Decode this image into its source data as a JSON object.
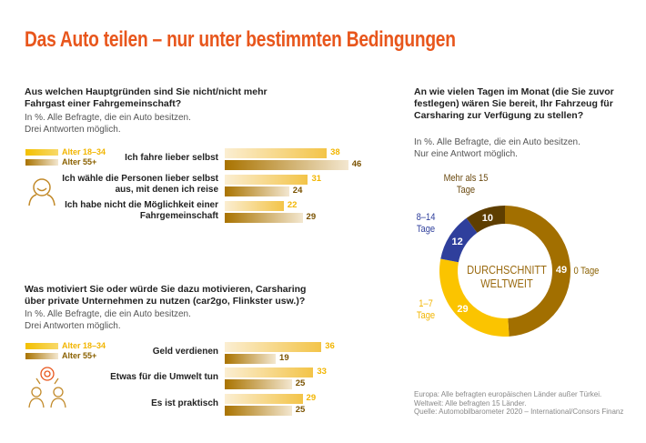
{
  "title": "Das Auto teilen – nur unter bestimmten Bedingungen",
  "colors": {
    "title": "#e8561c",
    "young": "#f3c448",
    "old": "#a97300",
    "donut_0": "#a26f00",
    "donut_1_7": "#fbc400",
    "donut_8_14": "#2f3f9c",
    "donut_15": "#5e3e00"
  },
  "chart_data": [
    {
      "type": "bar",
      "question": "Aus welchen Hauptgründen sind Sie nicht/nicht mehr Fahrgast einer Fahrgemeinschaft?",
      "note": [
        "In %. Alle Befragte, die ein Auto besitzen.",
        "Drei Antworten möglich."
      ],
      "icon": "person-icon",
      "categories": [
        "Ich fahre lieber selbst",
        "Ich wähle die Personen lieber selbst aus, mit denen ich reise",
        "Ich habe nicht die Möglichkeit einer Fahrgemeinschaft"
      ],
      "series": [
        {
          "name": "Alter 18–34",
          "values": [
            38,
            31,
            22
          ]
        },
        {
          "name": "Alter 55+",
          "values": [
            46,
            24,
            29
          ]
        }
      ]
    },
    {
      "type": "bar",
      "question": "Was motiviert Sie oder würde Sie dazu motivieren, Carsharing über private Unternehmen zu nutzen (car2go, Flinkster usw.)?",
      "note": [
        "In %. Alle Befragte, die ein Auto besitzen.",
        "Drei Antworten möglich."
      ],
      "icon": "people-network-icon",
      "categories": [
        "Geld verdienen",
        "Etwas für die Umwelt tun",
        "Es ist praktisch"
      ],
      "series": [
        {
          "name": "Alter 18–34",
          "values": [
            36,
            33,
            29
          ]
        },
        {
          "name": "Alter 55+",
          "values": [
            19,
            25,
            25
          ]
        }
      ]
    },
    {
      "type": "pie",
      "question": "An wie vielen Tagen im Monat (die Sie zuvor festlegen) wären Sie bereit, Ihr Fahrzeug für Carsharing zur Verfügung zu stellen?",
      "note": [
        "In %. Alle Befragte, die ein Auto besitzen.",
        "Nur eine Antwort möglich."
      ],
      "center_label": [
        "DURCHSCHNITT",
        "WELTWEIT"
      ],
      "categories": [
        "0 Tage",
        "1–7 Tage",
        "8–14 Tage",
        "Mehr als 15 Tage"
      ],
      "values": [
        49,
        29,
        12,
        10
      ]
    }
  ],
  "footnotes": [
    "Europa: Alle befragten europäischen Länder außer Türkei.",
    "Weltweit: Alle befragten 15 Länder.",
    "Quelle: Automobilbarometer 2020 – International/Consors Finanz"
  ]
}
